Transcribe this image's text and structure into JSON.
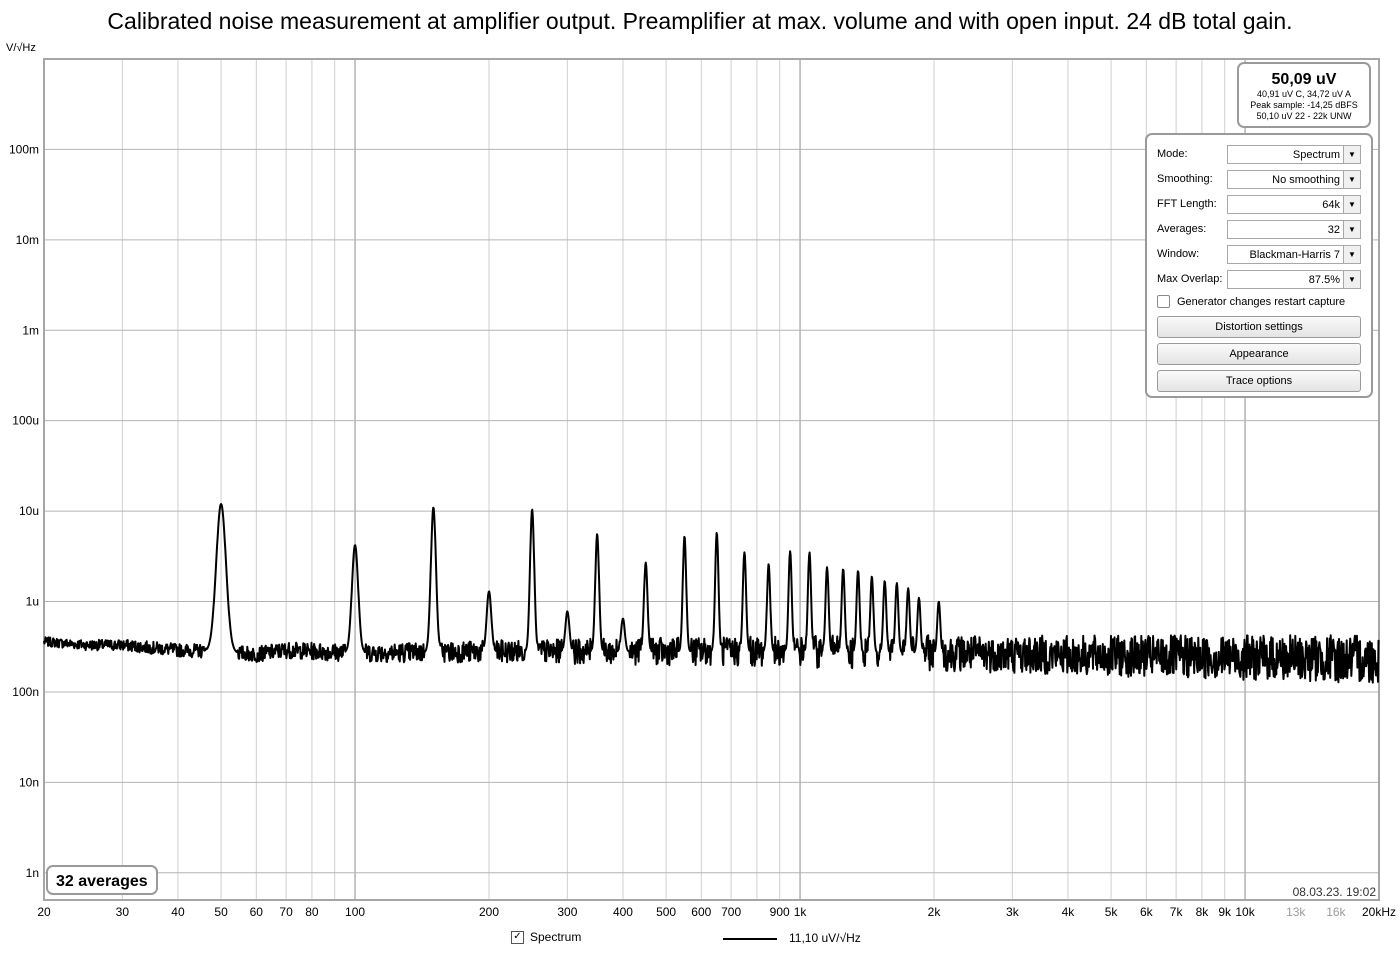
{
  "title": "Calibrated noise measurement at amplifier output. Preamplifier at max. volume and with open input. 24 dB total gain.",
  "y_unit": "V/√Hz",
  "chart_data": {
    "type": "line",
    "title": "Calibrated noise measurement at amplifier output. Preamplifier at max. volume and with open input. 24 dB total gain.",
    "xlabel": "",
    "ylabel": "V/√Hz",
    "x_scale": "log",
    "y_scale": "log",
    "xlim": [
      20,
      20000
    ],
    "ylim": [
      5e-10,
      1.0
    ],
    "grid": true,
    "y_ticks": [
      {
        "v": 0.1,
        "label": "100m"
      },
      {
        "v": 0.01,
        "label": "10m"
      },
      {
        "v": 0.001,
        "label": "1m"
      },
      {
        "v": 0.0001,
        "label": "100u"
      },
      {
        "v": 1e-05,
        "label": "10u"
      },
      {
        "v": 1e-06,
        "label": "1u"
      },
      {
        "v": 1e-07,
        "label": "100n"
      },
      {
        "v": 1e-08,
        "label": "10n"
      },
      {
        "v": 1e-09,
        "label": "1n"
      }
    ],
    "x_ticks": [
      {
        "v": 20,
        "label": "20"
      },
      {
        "v": 30,
        "label": "30"
      },
      {
        "v": 40,
        "label": "40"
      },
      {
        "v": 50,
        "label": "50"
      },
      {
        "v": 60,
        "label": "60"
      },
      {
        "v": 70,
        "label": "70"
      },
      {
        "v": 80,
        "label": "80"
      },
      {
        "v": 100,
        "label": "100"
      },
      {
        "v": 200,
        "label": "200"
      },
      {
        "v": 300,
        "label": "300"
      },
      {
        "v": 400,
        "label": "400"
      },
      {
        "v": 500,
        "label": "500"
      },
      {
        "v": 600,
        "label": "600"
      },
      {
        "v": 700,
        "label": "700"
      },
      {
        "v": 900,
        "label": "900"
      },
      {
        "v": 1000,
        "label": "1k"
      },
      {
        "v": 2000,
        "label": "2k"
      },
      {
        "v": 3000,
        "label": "3k"
      },
      {
        "v": 4000,
        "label": "4k"
      },
      {
        "v": 5000,
        "label": "5k"
      },
      {
        "v": 6000,
        "label": "6k"
      },
      {
        "v": 7000,
        "label": "7k"
      },
      {
        "v": 8000,
        "label": "8k"
      },
      {
        "v": 9000,
        "label": "9k"
      },
      {
        "v": 10000,
        "label": "10k"
      },
      {
        "v": 13000,
        "label": "13k",
        "muted": true
      },
      {
        "v": 16000,
        "label": "16k",
        "muted": true
      },
      {
        "v": 20000,
        "label": "20kHz"
      }
    ],
    "series": [
      {
        "name": "Spectrum",
        "color": "#000000",
        "baseline": [
          [
            20,
            3.6e-07
          ],
          [
            25,
            3.3e-07
          ],
          [
            30,
            3.3e-07
          ],
          [
            40,
            2.9e-07
          ],
          [
            50,
            2.8e-07
          ],
          [
            60,
            2.6e-07
          ],
          [
            70,
            2.9e-07
          ],
          [
            100,
            2.7e-07
          ],
          [
            200,
            2.8e-07
          ],
          [
            500,
            2.8e-07
          ],
          [
            1000,
            2.8e-07
          ],
          [
            2000,
            2.7e-07
          ],
          [
            5000,
            2.5e-07
          ],
          [
            10000,
            2.4e-07
          ],
          [
            20000,
            2.3e-07
          ]
        ],
        "peaks": [
          {
            "f": 50,
            "v": 1.2e-05
          },
          {
            "f": 100,
            "v": 4.2e-06
          },
          {
            "f": 150,
            "v": 1.1e-05
          },
          {
            "f": 200,
            "v": 1.3e-06
          },
          {
            "f": 250,
            "v": 1.05e-05
          },
          {
            "f": 300,
            "v": 7.8e-07
          },
          {
            "f": 350,
            "v": 5.6e-06
          },
          {
            "f": 400,
            "v": 6.5e-07
          },
          {
            "f": 450,
            "v": 2.7e-06
          },
          {
            "f": 550,
            "v": 5.3e-06
          },
          {
            "f": 650,
            "v": 5.8e-06
          },
          {
            "f": 750,
            "v": 3.5e-06
          },
          {
            "f": 850,
            "v": 2.6e-06
          },
          {
            "f": 950,
            "v": 3.6e-06
          },
          {
            "f": 1050,
            "v": 3.5e-06
          },
          {
            "f": 1150,
            "v": 2.4e-06
          },
          {
            "f": 1250,
            "v": 2.3e-06
          },
          {
            "f": 1350,
            "v": 2.2e-06
          },
          {
            "f": 1450,
            "v": 1.9e-06
          },
          {
            "f": 1550,
            "v": 1.7e-06
          },
          {
            "f": 1650,
            "v": 1.6e-06
          },
          {
            "f": 1750,
            "v": 1.4e-06
          },
          {
            "f": 1850,
            "v": 1.1e-06
          },
          {
            "f": 2050,
            "v": 1e-06
          }
        ]
      }
    ]
  },
  "averages_badge": "32 averages",
  "timestamp": "08.03.23. 19:02",
  "readout": {
    "main": "50,09 uV",
    "line1": "40,91 uV C, 34,72 uV A",
    "line2": "Peak sample: -14,25 dBFS",
    "line3": "50,10 uV 22 - 22k UNW"
  },
  "panel": {
    "rows": [
      {
        "label": "Mode:",
        "value": "Spectrum"
      },
      {
        "label": "Smoothing:",
        "value": "No  smoothing"
      },
      {
        "label": "FFT Length:",
        "value": "64k"
      },
      {
        "label": "Averages:",
        "value": "32"
      },
      {
        "label": "Window:",
        "value": "Blackman-Harris 7"
      },
      {
        "label": "Max Overlap:",
        "value": "87.5%"
      }
    ],
    "checkbox_label": "Generator changes restart capture",
    "checkbox_checked": false,
    "buttons": [
      "Distortion settings",
      "Appearance",
      "Trace options"
    ]
  },
  "legend": {
    "checkbox_label": "Spectrum",
    "checked": true,
    "value": "11,10 uV/√Hz"
  }
}
